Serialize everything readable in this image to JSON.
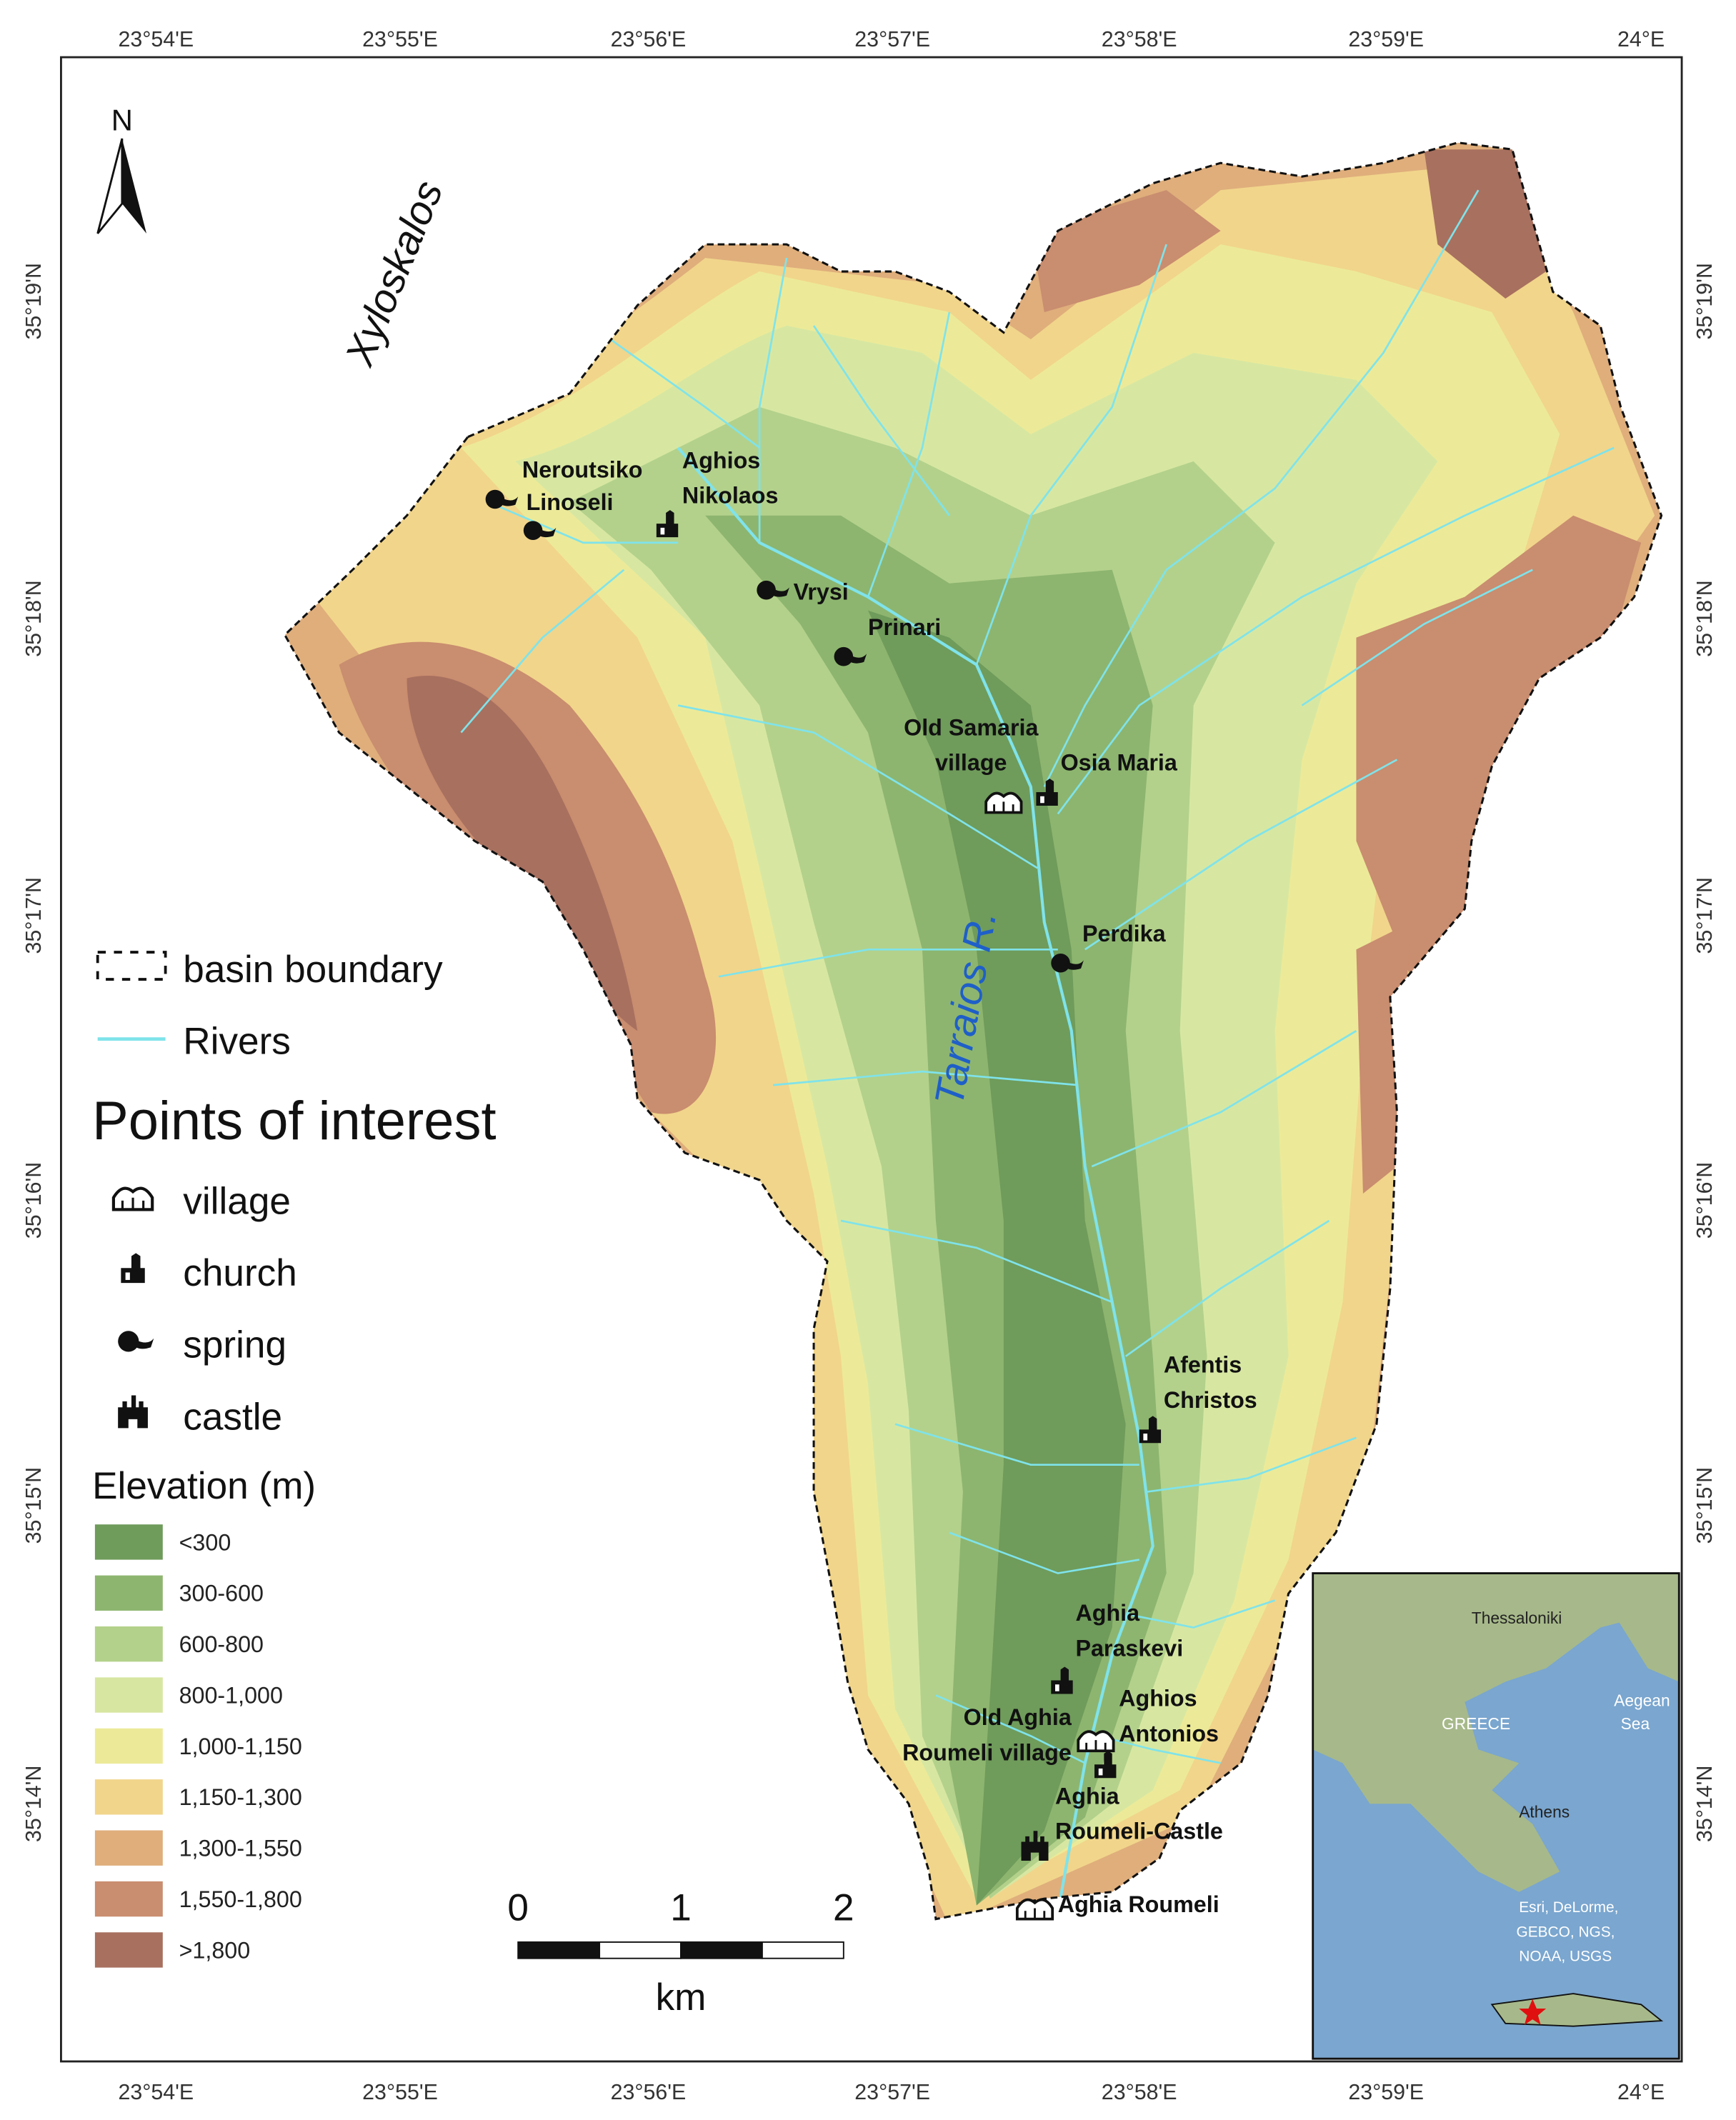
{
  "map": {
    "top_longitudes": [
      "23°54'E",
      "23°55'E",
      "23°56'E",
      "23°57'E",
      "23°58'E",
      "23°59'E",
      "24°E"
    ],
    "bottom_longitudes": [
      "23°54'E",
      "23°55'E",
      "23°56'E",
      "23°57'E",
      "23°58'E",
      "23°59'E",
      "24°E"
    ],
    "left_latitudes": [
      "35°19'N",
      "35°18'N",
      "35°17'N",
      "35°16'N",
      "35°15'N",
      "35°14'N"
    ],
    "right_latitudes": [
      "35°19'N",
      "35°18'N",
      "35°17'N",
      "35°16'N",
      "35°15'N",
      "35°14'N"
    ],
    "north_arrow": "N",
    "region_label": "Xyloskalos",
    "river_label": "Tarraios R.",
    "places": [
      {
        "lines": [
          "Neroutsiko"
        ],
        "icon": "spring"
      },
      {
        "lines": [
          "Linoseli"
        ],
        "icon": "spring"
      },
      {
        "lines": [
          "Aghios",
          "Nikolaos"
        ],
        "icon": "church"
      },
      {
        "lines": [
          "Vrysi"
        ],
        "icon": "spring"
      },
      {
        "lines": [
          "Prinari"
        ],
        "icon": "spring"
      },
      {
        "lines": [
          "Old Samaria",
          "village"
        ],
        "icon": "village"
      },
      {
        "lines": [
          "Osia Maria"
        ],
        "icon": "church"
      },
      {
        "lines": [
          "Perdika"
        ],
        "icon": "spring"
      },
      {
        "lines": [
          "Afentis",
          "Christos"
        ],
        "icon": "church"
      },
      {
        "lines": [
          "Aghia",
          "Paraskevi"
        ],
        "icon": "church"
      },
      {
        "lines": [
          "Old Aghia",
          "Roumeli village"
        ],
        "icon": "village"
      },
      {
        "lines": [
          "Aghios",
          "Antonios"
        ],
        "icon": "church"
      },
      {
        "lines": [
          "Aghia",
          "Roumeli-Castle"
        ],
        "icon": "castle"
      },
      {
        "lines": [
          "Aghia Roumeli"
        ],
        "icon": "village"
      }
    ],
    "inset": {
      "labels": [
        "Thessaloniki",
        "GREECE",
        "Aegean",
        "Sea",
        "Athens",
        "Esri, DeLorme,",
        "GEBCO, NGS,",
        "NOAA, USGS"
      ]
    }
  },
  "legend": {
    "boundary": "basin boundary",
    "rivers": {
      "label": "Rivers",
      "color": "#7fe3ea"
    },
    "poi_title": "Points of interest",
    "poi": [
      "village",
      "church",
      "spring",
      "castle"
    ],
    "elevation_title": "Elevation (m)",
    "classes": [
      {
        "label": "<300",
        "color": "#6f9b5b"
      },
      {
        "label": "300-600",
        "color": "#8db56f"
      },
      {
        "label": "600-800",
        "color": "#b3d18b"
      },
      {
        "label": "800-1,000",
        "color": "#d7e7a2"
      },
      {
        "label": "1,000-1,150",
        "color": "#ecea98"
      },
      {
        "label": "1,150-1,300",
        "color": "#f1d58b"
      },
      {
        "label": "1,300-1,550",
        "color": "#dfae7b"
      },
      {
        "label": "1,550-1,800",
        "color": "#c98d6f"
      },
      {
        "label": ">1,800",
        "color": "#a8705f"
      }
    ]
  },
  "scale_bar": {
    "ticks": [
      0,
      1,
      2
    ],
    "unit": "km"
  }
}
